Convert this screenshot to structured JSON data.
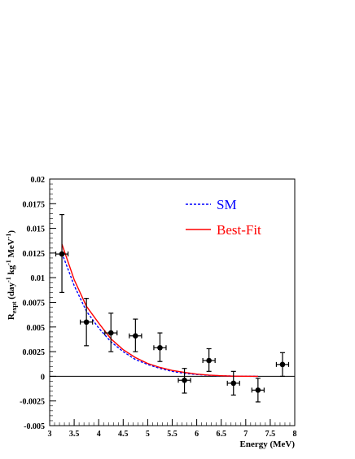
{
  "chart_data": {
    "type": "scatter",
    "xlabel": "Energy (MeV)",
    "ylabel": {
      "base": "R",
      "sub": "expt",
      "p1": " (day",
      "s1": "-1",
      "p2": " kg",
      "s2": "-1",
      "p3": " MeV",
      "s3": "-1",
      "p4": ")"
    },
    "xlim": [
      3,
      8
    ],
    "ylim": [
      -0.005,
      0.02
    ],
    "x_ticks": [
      3,
      3.5,
      4,
      4.5,
      5,
      5.5,
      6,
      6.5,
      7,
      7.5,
      8
    ],
    "x_tick_labels": [
      "3",
      "3.5",
      "4",
      "4.5",
      "5",
      "5.5",
      "6",
      "6.5",
      "7",
      "7.5",
      "8"
    ],
    "y_ticks": [
      -0.005,
      -0.0025,
      0,
      0.0025,
      0.005,
      0.0075,
      0.01,
      0.0125,
      0.015,
      0.0175,
      0.02
    ],
    "y_tick_labels": [
      "-0.005",
      "-0.0025",
      "0",
      "0.0025",
      "0.005",
      "0.0075",
      "0.01",
      "0.0125",
      "0.015",
      "0.0175",
      "0.02"
    ],
    "zero_line": true,
    "points": [
      {
        "x": 3.25,
        "y": 0.0124,
        "xerr": 0.125,
        "ylo": 0.0085,
        "yhi": 0.0164
      },
      {
        "x": 3.75,
        "y": 0.0055,
        "xerr": 0.125,
        "ylo": 0.0031,
        "yhi": 0.0079
      },
      {
        "x": 4.25,
        "y": 0.0044,
        "xerr": 0.125,
        "ylo": 0.0025,
        "yhi": 0.0064
      },
      {
        "x": 4.75,
        "y": 0.0041,
        "xerr": 0.125,
        "ylo": 0.0025,
        "yhi": 0.0058
      },
      {
        "x": 5.25,
        "y": 0.0029,
        "xerr": 0.125,
        "ylo": 0.0015,
        "yhi": 0.0044
      },
      {
        "x": 5.75,
        "y": -0.0004,
        "xerr": 0.125,
        "ylo": -0.0017,
        "yhi": 0.0008
      },
      {
        "x": 6.25,
        "y": 0.0016,
        "xerr": 0.125,
        "ylo": 0.0005,
        "yhi": 0.0028
      },
      {
        "x": 6.75,
        "y": -0.0007,
        "xerr": 0.125,
        "ylo": -0.0019,
        "yhi": 0.0005
      },
      {
        "x": 7.25,
        "y": -0.0014,
        "xerr": 0.125,
        "ylo": -0.0026,
        "yhi": -0.0002
      },
      {
        "x": 7.75,
        "y": 0.0012,
        "xerr": 0.125,
        "ylo": 0.0,
        "yhi": 0.0024
      }
    ],
    "series": [
      {
        "name": "SM",
        "color": "#0000ff",
        "dash": "dotted",
        "x": [
          3.25,
          3.5,
          3.75,
          4.0,
          4.25,
          4.5,
          4.75,
          5.0,
          5.25,
          5.5,
          5.75,
          6.0,
          6.25,
          6.5,
          6.75,
          7.0,
          7.25
        ],
        "y": [
          0.0125,
          0.0092,
          0.0066,
          0.0049,
          0.0035,
          0.0025,
          0.0017,
          0.0012,
          0.0008,
          0.0005,
          0.0003,
          0.00018,
          0.0001,
          5e-05,
          2e-05,
          5e-06,
          0.0
        ]
      },
      {
        "name": "Best-Fit",
        "color": "#ff0000",
        "dash": "solid",
        "x": [
          3.25,
          3.5,
          3.75,
          4.0,
          4.25,
          4.5,
          4.75,
          5.0,
          5.25,
          5.5,
          5.75,
          6.0,
          6.25,
          6.5,
          6.75,
          7.0,
          7.25
        ],
        "y": [
          0.0134,
          0.0098,
          0.0071,
          0.0054,
          0.0038,
          0.0027,
          0.0019,
          0.0013,
          0.0009,
          0.0006,
          0.0004,
          0.00022,
          0.00012,
          6e-05,
          2e-05,
          5e-06,
          0.0
        ]
      }
    ],
    "legend": {
      "placement": "top-right",
      "entries": [
        {
          "label": "SM",
          "color": "#0000ff",
          "dash": "dotted"
        },
        {
          "label": "Best-Fit",
          "color": "#ff0000",
          "dash": "solid"
        }
      ]
    }
  }
}
